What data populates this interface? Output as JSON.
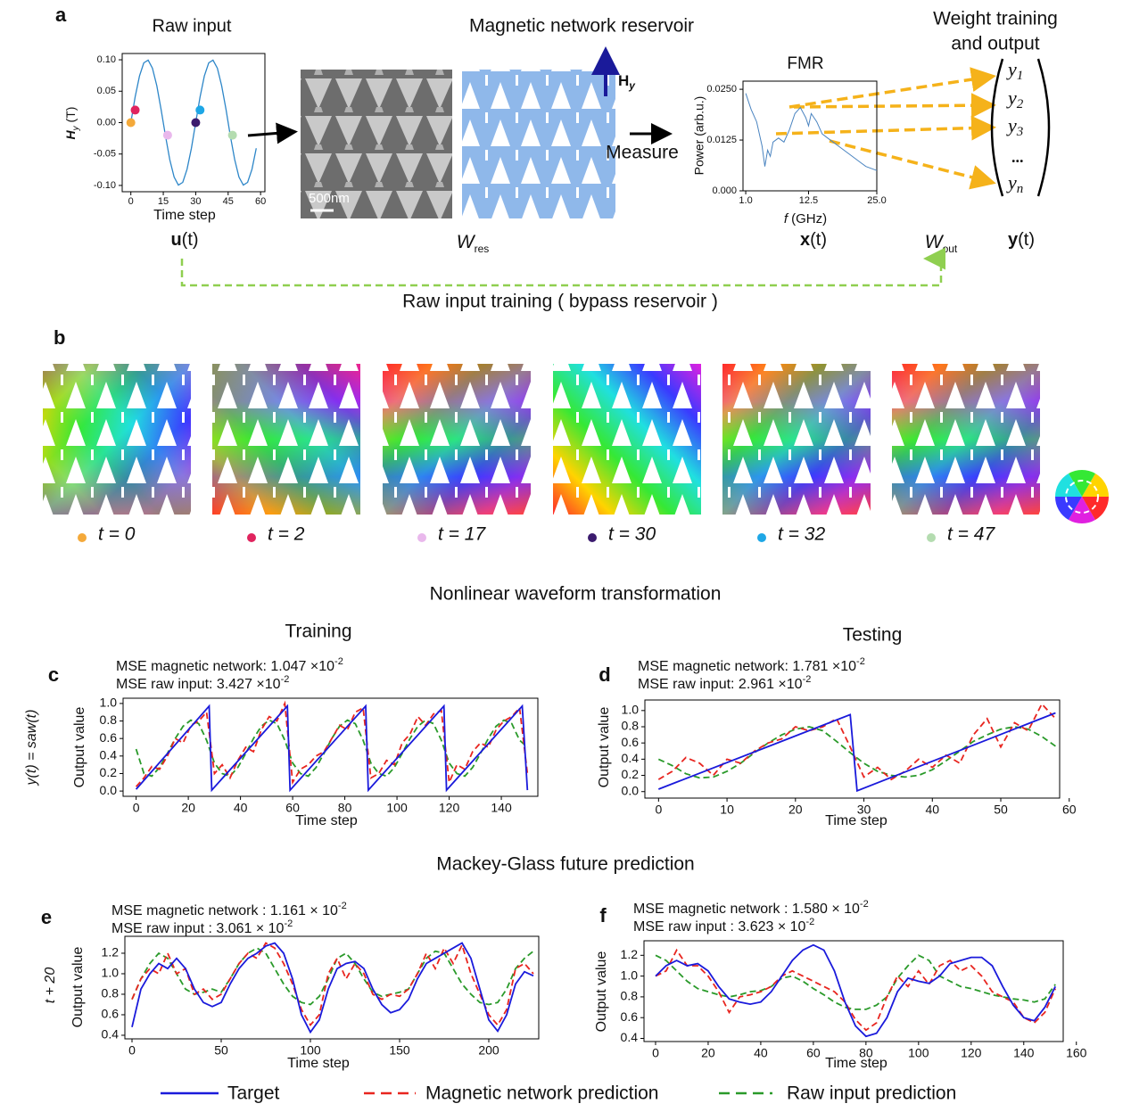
{
  "panel_a": {
    "letter": "a",
    "reservoir_title": "Magnetic network reservoir",
    "output_title": [
      "Weight training",
      "and output"
    ],
    "scale_bar": "500nm",
    "field": {
      "main": "H",
      "sub": "y"
    },
    "measure": "Measure",
    "input_symbol": {
      "main": "u",
      "arg": "(t)"
    },
    "res_weight": {
      "main": "W",
      "sub": "res"
    },
    "state": {
      "main": "x",
      "arg": "(t)"
    },
    "out_weight": {
      "main": "W",
      "sub": "out"
    },
    "output": {
      "main": "y",
      "arg": "(t)"
    },
    "outputs": [
      {
        "main": "y",
        "sub": "1"
      },
      {
        "main": "y",
        "sub": "2"
      },
      {
        "main": "y",
        "sub": "3"
      },
      {
        "main": "..."
      },
      {
        "main": "y",
        "sub": "n"
      }
    ],
    "bypass": "Raw input training ( bypass reservoir )"
  },
  "panel_b": {
    "letter": "b",
    "snapshots": [
      "t = 0",
      "t = 2",
      "t = 17",
      "t = 30",
      "t = 32",
      "t = 47"
    ]
  },
  "sections": {
    "waveform": "Nonlinear waveform transformation",
    "mackey": "Mackey-Glass future prediction"
  },
  "legend": [
    {
      "name": "Target",
      "color": "#1a1adb",
      "dash": "solid"
    },
    {
      "name": "Magnetic network prediction",
      "color": "#e8251f",
      "dash": "dashed"
    },
    {
      "name": "Raw input prediction",
      "color": "#2a9a2a",
      "dash": "dashed"
    }
  ],
  "chart_data": [
    {
      "type": "line",
      "title": "Raw input",
      "xlabel": "Time step",
      "ylabel": {
        "main": "H",
        "sub": "y",
        "unit": "(T)"
      },
      "x": [
        0,
        2,
        4,
        6,
        8,
        10,
        12,
        14,
        16,
        18,
        20,
        22,
        24,
        26,
        28,
        30,
        32,
        34,
        36,
        38,
        40,
        42,
        44,
        46,
        48,
        50,
        52,
        54,
        56,
        58
      ],
      "series": [
        {
          "color": "#2d86c8",
          "values": [
            0,
            0.0407,
            0.0743,
            0.0951,
            0.0995,
            0.0866,
            0.0588,
            0.0208,
            -0.0208,
            -0.0588,
            -0.0866,
            -0.0995,
            -0.0951,
            -0.0743,
            -0.0407,
            0,
            0.0407,
            0.0743,
            0.0951,
            0.0995,
            0.0866,
            0.0588,
            0.0208,
            -0.0208,
            -0.0588,
            -0.0866,
            -0.0995,
            -0.0951,
            -0.0743,
            -0.0407
          ]
        }
      ],
      "points": {
        "x": [
          0,
          2,
          17,
          30,
          32,
          47
        ],
        "values": [
          0,
          0.02,
          -0.02,
          0,
          0.02,
          -0.02
        ],
        "colors": [
          "#f4a93a",
          "#e0245e",
          "#e9b8ec",
          "#3b1b6e",
          "#1ea7e6",
          "#b4dcb0"
        ]
      },
      "xlim": [
        -4,
        62
      ],
      "xticks": [
        0,
        15,
        30,
        45,
        60
      ],
      "ylim": [
        -0.11,
        0.11
      ],
      "yticks": [
        {
          "value": -0.1,
          "label": "-0.10"
        },
        {
          "value": -0.05,
          "label": "-0.05"
        },
        {
          "value": 0,
          "label": "0.00"
        },
        {
          "value": 0.05,
          "label": "0.05"
        },
        {
          "value": 0.1,
          "label": "0.10"
        }
      ]
    },
    {
      "type": "line",
      "title": "FMR",
      "xlabel": {
        "main": "f",
        "unit": "(GHz)"
      },
      "ylabel": "Power (arb.u.)",
      "x": [
        1,
        1.5,
        2,
        3,
        4,
        4.5,
        5,
        5.5,
        6,
        7,
        8,
        9,
        10,
        11,
        12,
        12.5,
        13,
        14,
        15,
        16,
        17,
        18,
        20,
        22,
        23,
        25
      ],
      "series": [
        {
          "color": "#4a84c0",
          "values": [
            0.024,
            0.022,
            0.02,
            0.017,
            0.011,
            0.006,
            0.01,
            0.0085,
            0.012,
            0.013,
            0.012,
            0.015,
            0.019,
            0.0205,
            0.018,
            0.016,
            0.019,
            0.017,
            0.014,
            0.013,
            0.012,
            0.011,
            0.009,
            0.007,
            0.006,
            0.005
          ]
        }
      ],
      "xlim": [
        0.5,
        25
      ],
      "xticks": [
        {
          "value": 1,
          "label": "1.0"
        },
        {
          "value": 12.5,
          "label": "12.5"
        },
        {
          "value": 25,
          "label": "25.0"
        }
      ],
      "ylim": [
        0,
        0.027
      ],
      "yticks": [
        {
          "value": 0,
          "label": "0.000"
        },
        {
          "value": 0.0125,
          "label": "0.0125"
        },
        {
          "value": 0.025,
          "label": "0.0250"
        }
      ]
    },
    {
      "type": "line",
      "panel": "c",
      "title": "Training",
      "row_label": "y(t) = saw(t)",
      "xlabel": "Time step",
      "ylabel": "Output value",
      "annotations": [
        {
          "text": "MSE  magnetic network:  1.047 ×10",
          "sup": "-2"
        },
        {
          "text": "MSE raw input:  3.427 ×10",
          "sup": "-2"
        }
      ],
      "x": [
        0,
        3,
        6,
        9,
        12,
        15,
        18,
        21,
        24,
        27,
        30,
        33,
        36,
        39,
        42,
        45,
        48,
        51,
        54,
        57,
        60,
        63,
        66,
        69,
        72,
        75,
        78,
        81,
        84,
        87,
        90,
        93,
        96,
        99,
        102,
        105,
        108,
        111,
        114,
        117,
        120,
        123,
        126,
        129,
        132,
        135,
        138,
        141,
        144,
        147,
        150
      ],
      "series": [
        {
          "x": [
            0,
            28,
            29,
            58,
            59,
            88,
            89,
            118,
            119,
            148,
            150
          ],
          "values": [
            0.02,
            0.97,
            0.01,
            0.97,
            0.01,
            0.97,
            0.01,
            0.97,
            0.01,
            0.97,
            0.01
          ]
        },
        {
          "values": [
            0.05,
            0.15,
            0.28,
            0.25,
            0.4,
            0.6,
            0.55,
            0.75,
            0.8,
            0.9,
            0.2,
            0.3,
            0.15,
            0.35,
            0.5,
            0.45,
            0.7,
            0.85,
            0.8,
            1.0,
            0.1,
            0.25,
            0.3,
            0.4,
            0.45,
            0.6,
            0.75,
            0.7,
            0.9,
            0.95,
            0.15,
            0.2,
            0.35,
            0.3,
            0.55,
            0.65,
            0.85,
            0.75,
            0.88,
            0.92,
            0.1,
            0.3,
            0.25,
            0.45,
            0.55,
            0.5,
            0.7,
            0.8,
            0.85,
            0.95,
            0.2
          ]
        },
        {
          "values": [
            0.48,
            0.2,
            0.17,
            0.27,
            0.43,
            0.6,
            0.74,
            0.81,
            0.77,
            0.58,
            0.32,
            0.2,
            0.17,
            0.27,
            0.43,
            0.6,
            0.74,
            0.81,
            0.77,
            0.58,
            0.32,
            0.2,
            0.17,
            0.27,
            0.43,
            0.6,
            0.74,
            0.81,
            0.77,
            0.58,
            0.32,
            0.2,
            0.17,
            0.27,
            0.43,
            0.6,
            0.74,
            0.81,
            0.77,
            0.58,
            0.32,
            0.2,
            0.17,
            0.27,
            0.43,
            0.6,
            0.74,
            0.81,
            0.77,
            0.58,
            0.5
          ]
        }
      ],
      "xlim": [
        -5,
        154
      ],
      "xticks": [
        0,
        20,
        40,
        60,
        80,
        100,
        120,
        140
      ],
      "ylim": [
        -0.06,
        1.06
      ],
      "yticks": [
        {
          "value": 0,
          "label": "0.0"
        },
        0.2,
        0.4,
        0.6,
        0.8,
        {
          "value": 1,
          "label": "1.0"
        }
      ]
    },
    {
      "type": "line",
      "panel": "d",
      "title": "Testing",
      "xlabel": "Time step",
      "ylabel": "Output value",
      "annotations": [
        {
          "text": "MSE  magnetic network:  1.781 ×10",
          "sup": "-2"
        },
        {
          "text": "MSE raw input:  2.961 ×10",
          "sup": "-2"
        }
      ],
      "x": [
        0,
        2,
        4,
        6,
        8,
        10,
        12,
        14,
        16,
        18,
        20,
        22,
        24,
        26,
        28,
        30,
        32,
        34,
        36,
        38,
        40,
        42,
        44,
        46,
        48,
        50,
        52,
        54,
        56,
        58
      ],
      "series": [
        {
          "x": [
            0,
            28,
            29,
            58
          ],
          "values": [
            0.03,
            0.95,
            0.01,
            0.97
          ]
        },
        {
          "values": [
            0.15,
            0.25,
            0.42,
            0.35,
            0.2,
            0.4,
            0.35,
            0.5,
            0.6,
            0.65,
            0.8,
            0.75,
            0.8,
            0.9,
            0.55,
            0.18,
            0.3,
            0.15,
            0.25,
            0.4,
            0.3,
            0.45,
            0.35,
            0.7,
            0.9,
            0.55,
            0.85,
            0.75,
            1.08,
            0.9
          ]
        },
        {
          "values": [
            0.4,
            0.32,
            0.22,
            0.17,
            0.18,
            0.25,
            0.35,
            0.48,
            0.6,
            0.7,
            0.77,
            0.8,
            0.75,
            0.62,
            0.48,
            0.35,
            0.25,
            0.2,
            0.18,
            0.2,
            0.27,
            0.38,
            0.5,
            0.62,
            0.7,
            0.77,
            0.8,
            0.77,
            0.68,
            0.56
          ]
        }
      ],
      "xlim": [
        -2,
        58.6
      ],
      "xticks": [
        0,
        10,
        20,
        30,
        40,
        50,
        60
      ],
      "ylim": [
        -0.08,
        1.13
      ],
      "yticks": [
        {
          "value": 0,
          "label": "0.0"
        },
        0.2,
        0.4,
        0.6,
        0.8,
        {
          "value": 1,
          "label": "1.0"
        }
      ]
    },
    {
      "type": "line",
      "panel": "e",
      "row_label": "t + 20",
      "xlabel": "Time step",
      "ylabel": "Output value",
      "annotations": [
        {
          "text": "MSE  magnetic network :  1.161 × 10",
          "sup": "-2"
        },
        {
          "text": "MSE raw input :  3.061 × 10",
          "sup": "-2"
        }
      ],
      "x": [
        0,
        5,
        10,
        15,
        20,
        25,
        30,
        35,
        40,
        45,
        50,
        55,
        60,
        65,
        70,
        75,
        80,
        85,
        90,
        95,
        100,
        105,
        110,
        115,
        120,
        125,
        130,
        135,
        140,
        145,
        150,
        155,
        160,
        165,
        170,
        175,
        180,
        185,
        190,
        195,
        200,
        205,
        210,
        215,
        220,
        225
      ],
      "series": [
        {
          "values": [
            0.48,
            0.85,
            1.0,
            1.1,
            1.05,
            1.15,
            1.05,
            0.85,
            0.72,
            0.68,
            0.72,
            0.9,
            1.05,
            1.15,
            1.2,
            1.27,
            1.3,
            1.2,
            0.95,
            0.6,
            0.43,
            0.55,
            0.85,
            1.05,
            1.1,
            1.12,
            1.05,
            0.85,
            0.7,
            0.62,
            0.65,
            0.75,
            0.95,
            1.1,
            1.15,
            1.2,
            1.25,
            1.3,
            1.15,
            0.85,
            0.55,
            0.44,
            0.6,
            0.9,
            1.02,
            0.98
          ]
        },
        {
          "values": [
            0.75,
            0.95,
            1.05,
            1.0,
            1.2,
            1.0,
            1.05,
            0.8,
            0.85,
            0.75,
            0.8,
            0.95,
            1.1,
            1.2,
            1.15,
            1.3,
            1.25,
            1.1,
            0.9,
            0.65,
            0.5,
            0.6,
            1.0,
            1.15,
            0.95,
            1.1,
            1.0,
            0.8,
            0.75,
            0.8,
            0.78,
            0.85,
            1.0,
            1.2,
            1.05,
            1.25,
            1.1,
            1.28,
            1.0,
            0.8,
            0.6,
            0.5,
            0.65,
            1.05,
            1.1,
            1.0
          ]
        },
        {
          "values": [
            0.75,
            0.95,
            1.1,
            1.2,
            1.15,
            1.0,
            0.85,
            0.8,
            0.82,
            0.85,
            0.82,
            0.95,
            1.1,
            1.2,
            1.25,
            1.2,
            1.05,
            0.9,
            0.78,
            0.72,
            0.7,
            0.78,
            0.95,
            1.15,
            1.2,
            1.1,
            0.95,
            0.82,
            0.78,
            0.8,
            0.82,
            0.85,
            1.0,
            1.15,
            1.22,
            1.2,
            1.05,
            0.9,
            0.8,
            0.72,
            0.7,
            0.72,
            0.85,
            1.05,
            1.15,
            1.22
          ]
        }
      ],
      "xlim": [
        -4,
        228
      ],
      "xticks": [
        0,
        50,
        100,
        150,
        200
      ],
      "ylim": [
        0.365,
        1.365
      ],
      "yticks": [
        0.4,
        0.6,
        0.8,
        {
          "value": 1,
          "label": "1.0"
        },
        1.2
      ]
    },
    {
      "type": "line",
      "panel": "f",
      "xlabel": "Time step",
      "ylabel": "Output value",
      "annotations": [
        {
          "text": "MSE  magnetic network :  1.580 × 10",
          "sup": "-2"
        },
        {
          "text": "MSE raw input :  3.623 × 10",
          "sup": "-2"
        }
      ],
      "x": [
        0,
        4,
        8,
        12,
        16,
        20,
        24,
        28,
        32,
        36,
        40,
        44,
        48,
        52,
        56,
        60,
        64,
        68,
        72,
        76,
        80,
        84,
        88,
        92,
        96,
        100,
        104,
        108,
        112,
        116,
        120,
        124,
        128,
        132,
        136,
        140,
        144,
        148,
        152
      ],
      "series": [
        {
          "values": [
            1.0,
            1.1,
            1.15,
            1.1,
            1.12,
            1.05,
            0.9,
            0.78,
            0.75,
            0.73,
            0.75,
            0.85,
            1.0,
            1.15,
            1.25,
            1.3,
            1.25,
            1.05,
            0.75,
            0.52,
            0.42,
            0.45,
            0.6,
            0.85,
            0.98,
            0.95,
            0.93,
            1.0,
            1.12,
            1.15,
            1.18,
            1.18,
            1.1,
            0.9,
            0.72,
            0.6,
            0.57,
            0.7,
            0.9
          ]
        },
        {
          "values": [
            1.0,
            1.05,
            1.25,
            1.1,
            1.1,
            1.0,
            0.85,
            0.65,
            0.8,
            0.82,
            0.85,
            0.9,
            1.0,
            1.05,
            1.0,
            0.95,
            0.9,
            0.85,
            0.75,
            0.58,
            0.48,
            0.55,
            0.8,
            1.0,
            0.9,
            1.05,
            0.92,
            1.1,
            1.15,
            1.05,
            1.1,
            1.0,
            0.85,
            0.8,
            0.75,
            0.6,
            0.55,
            0.65,
            0.88
          ]
        },
        {
          "values": [
            1.2,
            1.15,
            1.05,
            0.95,
            0.88,
            0.85,
            0.82,
            0.8,
            0.82,
            0.85,
            0.86,
            0.9,
            0.98,
            1.0,
            0.95,
            0.88,
            0.82,
            0.75,
            0.7,
            0.68,
            0.68,
            0.72,
            0.8,
            0.98,
            1.1,
            1.2,
            1.15,
            1.0,
            0.95,
            0.9,
            0.88,
            0.85,
            0.82,
            0.8,
            0.78,
            0.77,
            0.75,
            0.78,
            0.92
          ]
        }
      ],
      "xlim": [
        -4.4,
        155
      ],
      "xticks": [
        0,
        20,
        40,
        60,
        80,
        100,
        120,
        140,
        160
      ],
      "ylim": [
        0.37,
        1.34
      ],
      "yticks": [
        0.4,
        0.6,
        0.8,
        {
          "value": 1,
          "label": "1.0"
        },
        1.2
      ]
    }
  ]
}
